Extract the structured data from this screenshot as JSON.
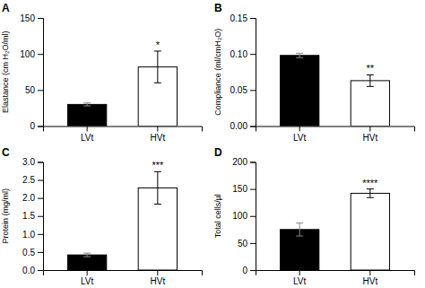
{
  "chart_data": [
    {
      "type": "bar",
      "title": "A",
      "ylabel": "Elastance (cm H₂O/ml)",
      "categories": [
        "LVt",
        "HVt"
      ],
      "values": [
        30,
        82
      ],
      "errors": [
        2,
        22
      ],
      "colors": [
        "black",
        "white"
      ],
      "ylim": [
        0,
        150
      ],
      "yticks": [
        0,
        50,
        100,
        150
      ],
      "annotations": [
        {
          "text": "*",
          "x": "HVt"
        }
      ]
    },
    {
      "type": "bar",
      "title": "B",
      "ylabel": "Compliance (ml/cmH₂O)",
      "categories": [
        "LVt",
        "HVt"
      ],
      "values": [
        0.098,
        0.063
      ],
      "errors": [
        0.003,
        0.008
      ],
      "colors": [
        "black",
        "white"
      ],
      "ylim": [
        0,
        0.15
      ],
      "yticks": [
        {
          "value": 0,
          "label": "0.00"
        },
        0.05,
        {
          "value": 0.1,
          "label": "0.10"
        },
        0.15
      ],
      "annotations": [
        {
          "text": "**",
          "x": "HVt"
        }
      ]
    },
    {
      "type": "bar",
      "title": "C",
      "ylabel": "Protein (mg/ml)",
      "categories": [
        "LVt",
        "HVt"
      ],
      "values": [
        0.42,
        2.28
      ],
      "errors": [
        0.05,
        0.45
      ],
      "colors": [
        "black",
        "white"
      ],
      "ylim": [
        0,
        3.0
      ],
      "yticks": [
        {
          "value": 0,
          "label": "0.0"
        },
        0.5,
        {
          "value": 1,
          "label": "1.0"
        },
        1.5,
        {
          "value": 2,
          "label": "2.0"
        },
        2.5,
        {
          "value": 3,
          "label": "3.0"
        }
      ],
      "annotations": [
        {
          "text": "***",
          "x": "HVt"
        }
      ]
    },
    {
      "type": "bar",
      "title": "D",
      "ylabel": "Total cells/µl",
      "categories": [
        "LVt",
        "HVt"
      ],
      "values": [
        75,
        142
      ],
      "errors": [
        12,
        8
      ],
      "colors": [
        "black",
        "white"
      ],
      "ylim": [
        0,
        200
      ],
      "yticks": [
        0,
        50,
        100,
        150,
        200
      ],
      "annotations": [
        {
          "text": "****",
          "x": "HVt"
        }
      ]
    }
  ]
}
